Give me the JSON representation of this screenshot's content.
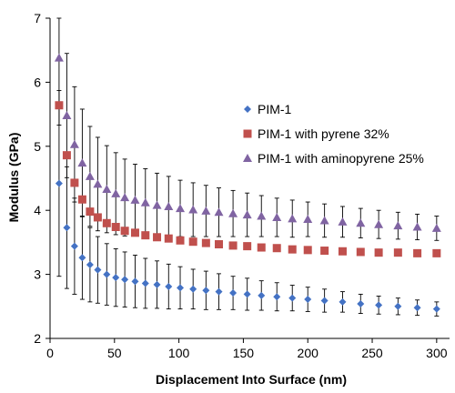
{
  "chart_data": {
    "type": "scatter",
    "title": "",
    "xlabel": "Displacement Into Surface (nm)",
    "ylabel": "Modulus (GPa)",
    "xlim": [
      0,
      310
    ],
    "ylim": [
      2,
      7
    ],
    "xticks": [
      0,
      50,
      100,
      150,
      200,
      250,
      300
    ],
    "yticks": [
      2,
      3,
      4,
      5,
      6,
      7
    ],
    "grid": false,
    "legend_position": "right",
    "series": [
      {
        "name": "PIM-1",
        "marker": "diamond",
        "color": "#4472C4",
        "x": [
          7,
          13,
          19,
          25,
          31,
          37,
          44,
          51,
          58,
          66,
          74,
          83,
          92,
          101,
          111,
          121,
          131,
          142,
          153,
          164,
          176,
          188,
          200,
          213,
          227,
          241,
          255,
          270,
          285,
          300
        ],
        "y": [
          4.42,
          3.73,
          3.44,
          3.26,
          3.15,
          3.07,
          3.0,
          2.95,
          2.92,
          2.89,
          2.86,
          2.84,
          2.81,
          2.79,
          2.77,
          2.75,
          2.73,
          2.71,
          2.69,
          2.67,
          2.65,
          2.63,
          2.61,
          2.59,
          2.57,
          2.54,
          2.52,
          2.5,
          2.48,
          2.46
        ],
        "error": [
          1.45,
          0.95,
          0.75,
          0.65,
          0.58,
          0.52,
          0.48,
          0.45,
          0.43,
          0.41,
          0.39,
          0.37,
          0.35,
          0.33,
          0.31,
          0.3,
          0.28,
          0.26,
          0.25,
          0.23,
          0.22,
          0.2,
          0.19,
          0.18,
          0.16,
          0.15,
          0.14,
          0.13,
          0.12,
          0.11
        ]
      },
      {
        "name": "PIM-1 with pyrene 32%",
        "marker": "square",
        "color": "#C0504D",
        "x": [
          7,
          13,
          19,
          25,
          31,
          37,
          44,
          51,
          58,
          66,
          74,
          83,
          92,
          101,
          111,
          121,
          131,
          142,
          153,
          164,
          176,
          188,
          200,
          213,
          227,
          241,
          255,
          270,
          285,
          300
        ],
        "y": [
          5.64,
          4.86,
          4.43,
          4.17,
          3.98,
          3.89,
          3.8,
          3.74,
          3.68,
          3.65,
          3.61,
          3.58,
          3.56,
          3.53,
          3.51,
          3.49,
          3.47,
          3.45,
          3.44,
          3.42,
          3.41,
          3.39,
          3.38,
          3.37,
          3.36,
          3.35,
          3.34,
          3.34,
          3.33,
          3.33
        ],
        "error": []
      },
      {
        "name": "PIM-1 with aminopyrene 25%",
        "marker": "triangle",
        "color": "#8064A2",
        "x": [
          7,
          13,
          19,
          25,
          31,
          37,
          44,
          51,
          58,
          66,
          74,
          83,
          92,
          101,
          111,
          121,
          131,
          142,
          153,
          164,
          176,
          188,
          200,
          213,
          227,
          241,
          255,
          270,
          285,
          300
        ],
        "y": [
          6.38,
          5.48,
          5.03,
          4.74,
          4.53,
          4.41,
          4.33,
          4.26,
          4.2,
          4.16,
          4.12,
          4.08,
          4.06,
          4.03,
          4.01,
          3.99,
          3.97,
          3.95,
          3.93,
          3.91,
          3.89,
          3.87,
          3.86,
          3.84,
          3.82,
          3.8,
          3.78,
          3.76,
          3.74,
          3.72
        ],
        "error": [
          1.05,
          0.97,
          0.9,
          0.84,
          0.78,
          0.73,
          0.68,
          0.64,
          0.6,
          0.56,
          0.53,
          0.5,
          0.47,
          0.44,
          0.42,
          0.4,
          0.38,
          0.36,
          0.34,
          0.32,
          0.3,
          0.29,
          0.27,
          0.26,
          0.24,
          0.23,
          0.22,
          0.21,
          0.2,
          0.19
        ]
      }
    ]
  }
}
